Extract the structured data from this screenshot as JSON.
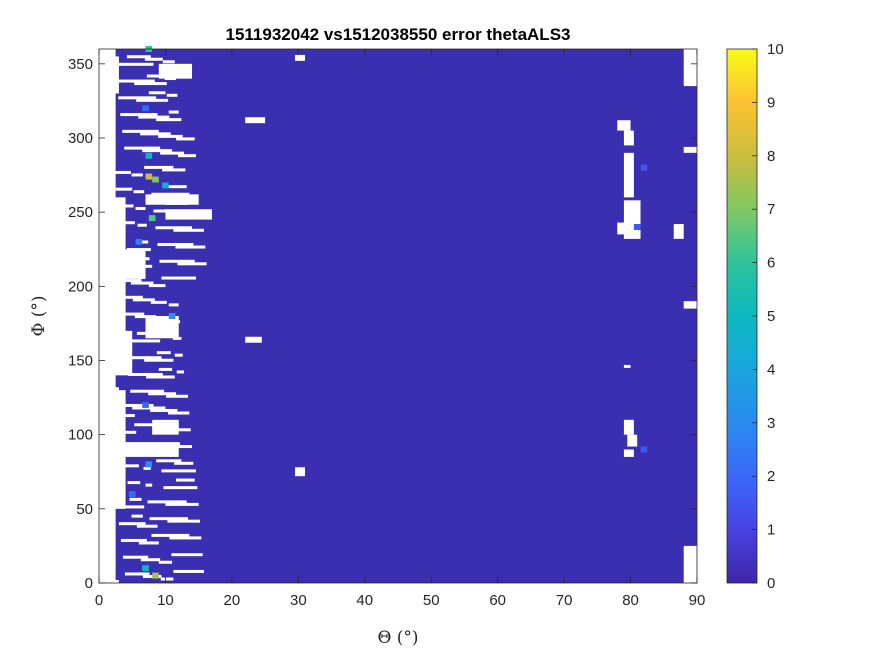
{
  "chart_data": {
    "type": "heatmap",
    "title": "1511932042 vs1512038550 error thetaALS3",
    "xlabel": "Θ (°)",
    "ylabel": "Φ (°)",
    "xlim": [
      0,
      90
    ],
    "ylim": [
      0,
      360
    ],
    "x_ticks": [
      "0",
      "10",
      "20",
      "30",
      "40",
      "50",
      "60",
      "70",
      "80",
      "90"
    ],
    "y_ticks": [
      "0",
      "50",
      "100",
      "150",
      "200",
      "250",
      "300",
      "350"
    ],
    "colorbar": {
      "min": 0,
      "max": 10,
      "ticks": [
        "0",
        "1",
        "2",
        "3",
        "4",
        "5",
        "6",
        "7",
        "8",
        "9",
        "10"
      ],
      "colormap": "parula"
    },
    "background_value": 0.3,
    "background_color": "#3a2fb0",
    "missing_color": "#ffffff",
    "missing_regions": [
      {
        "theta": [
          0,
          2.5
        ],
        "phi": [
          0,
          360
        ]
      },
      {
        "theta": [
          2,
          4
        ],
        "phi": [
          50,
          130
        ]
      },
      {
        "theta": [
          2,
          4
        ],
        "phi": [
          160,
          260
        ]
      },
      {
        "theta": [
          2,
          3
        ],
        "phi": [
          330,
          355
        ]
      },
      {
        "theta": [
          2.5,
          7
        ],
        "phi": [
          205,
          225
        ]
      },
      {
        "theta": [
          1,
          5
        ],
        "phi": [
          140,
          170
        ]
      },
      {
        "theta": [
          7,
          15
        ],
        "phi": [
          255,
          262
        ]
      },
      {
        "theta": [
          10,
          17
        ],
        "phi": [
          245,
          252
        ]
      },
      {
        "theta": [
          9,
          14
        ],
        "phi": [
          340,
          350
        ]
      },
      {
        "theta": [
          8,
          12
        ],
        "phi": [
          100,
          110
        ]
      },
      {
        "theta": [
          7,
          12
        ],
        "phi": [
          165,
          180
        ]
      },
      {
        "theta": [
          3,
          12
        ],
        "phi": [
          85,
          95
        ]
      },
      {
        "theta": [
          29.5,
          31
        ],
        "phi": [
          72,
          78
        ]
      },
      {
        "theta": [
          29.5,
          31
        ],
        "phi": [
          352,
          356
        ]
      },
      {
        "theta": [
          22,
          25
        ],
        "phi": [
          310,
          314
        ]
      },
      {
        "theta": [
          22,
          24.5
        ],
        "phi": [
          162,
          166
        ]
      },
      {
        "theta": [
          78,
          80
        ],
        "phi": [
          305,
          312
        ]
      },
      {
        "theta": [
          79,
          80.5
        ],
        "phi": [
          295,
          305
        ]
      },
      {
        "theta": [
          79,
          80.5
        ],
        "phi": [
          260,
          290
        ]
      },
      {
        "theta": [
          79,
          81.5
        ],
        "phi": [
          232,
          258
        ]
      },
      {
        "theta": [
          78,
          80
        ],
        "phi": [
          235,
          243
        ]
      },
      {
        "theta": [
          79,
          80.5
        ],
        "phi": [
          100,
          110
        ]
      },
      {
        "theta": [
          79.5,
          81
        ],
        "phi": [
          92,
          100
        ]
      },
      {
        "theta": [
          79,
          80.5
        ],
        "phi": [
          85,
          90
        ]
      },
      {
        "theta": [
          79,
          80
        ],
        "phi": [
          145,
          147
        ]
      },
      {
        "theta": [
          86.5,
          88
        ],
        "phi": [
          232,
          242
        ]
      },
      {
        "theta": [
          88,
          90
        ],
        "phi": [
          335,
          360
        ]
      },
      {
        "theta": [
          88,
          90
        ],
        "phi": [
          290,
          294
        ]
      },
      {
        "theta": [
          88,
          90
        ],
        "phi": [
          185,
          190
        ]
      },
      {
        "theta": [
          88,
          90
        ],
        "phi": [
          0,
          25
        ]
      }
    ],
    "hot_cells": [
      {
        "theta": 7.5,
        "phi": 274,
        "value": 8
      },
      {
        "theta": 8.5,
        "phi": 272,
        "value": 7
      },
      {
        "theta": 8,
        "phi": 246,
        "value": 6.5
      },
      {
        "theta": 7.5,
        "phi": 360,
        "value": 6
      },
      {
        "theta": 7.5,
        "phi": 288,
        "value": 5
      },
      {
        "theta": 8.5,
        "phi": 5,
        "value": 7.5
      },
      {
        "theta": 7,
        "phi": 10,
        "value": 5
      },
      {
        "theta": 7.5,
        "phi": 80,
        "value": 3
      },
      {
        "theta": 11,
        "phi": 180,
        "value": 3
      },
      {
        "theta": 6,
        "phi": 230,
        "value": 2.5
      },
      {
        "theta": 10,
        "phi": 268,
        "value": 4
      },
      {
        "theta": 7,
        "phi": 120,
        "value": 2
      },
      {
        "theta": 7,
        "phi": 320,
        "value": 2
      },
      {
        "theta": 5,
        "phi": 60,
        "value": 2
      },
      {
        "theta": 82,
        "phi": 280,
        "value": 1.5
      },
      {
        "theta": 81,
        "phi": 240,
        "value": 1.5
      },
      {
        "theta": 82,
        "phi": 90,
        "value": 1.5
      }
    ]
  }
}
